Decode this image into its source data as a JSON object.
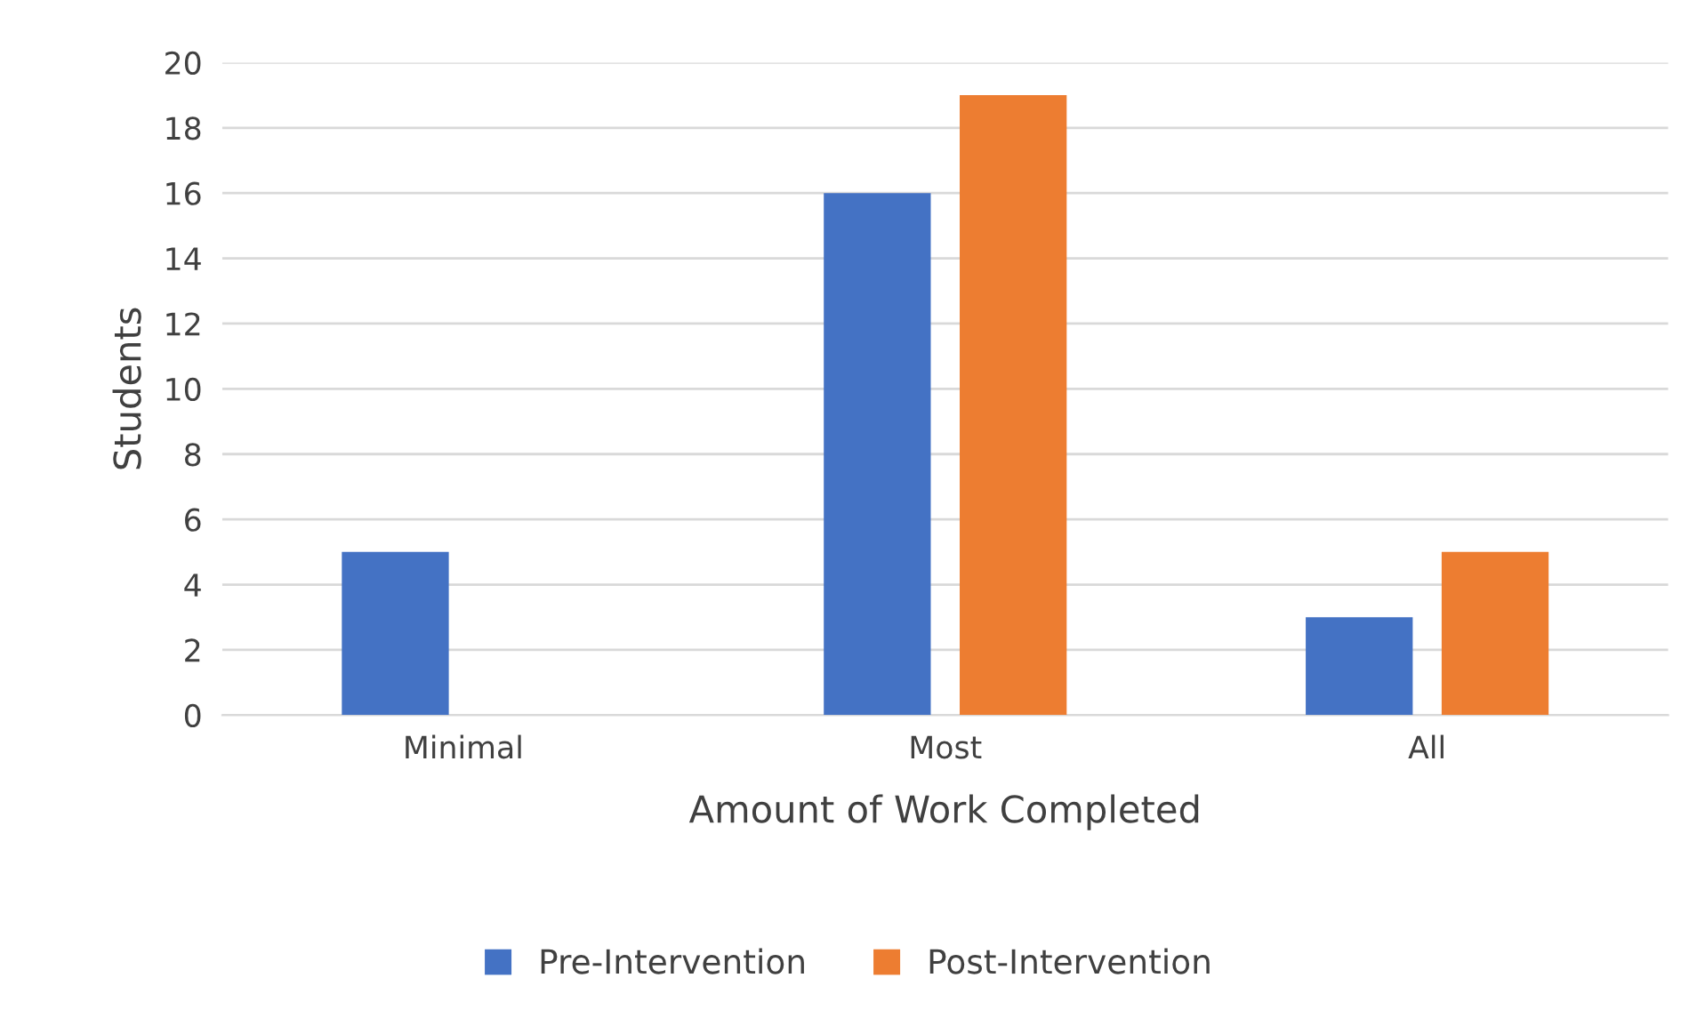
{
  "chart_data": {
    "type": "bar",
    "xlabel": "Amount of Work Completed",
    "ylabel": "Students",
    "categories": [
      "Minimal",
      "Most",
      "All"
    ],
    "series": [
      {
        "name": "Pre-Intervention",
        "color": "#4472c4",
        "values": [
          5,
          16,
          3
        ]
      },
      {
        "name": "Post-Intervention",
        "color": "#ed7d31",
        "values": [
          0,
          19,
          5
        ]
      }
    ],
    "ylim": [
      0,
      20
    ],
    "yticks": [
      0,
      2,
      4,
      6,
      8,
      10,
      12,
      14,
      16,
      18,
      20
    ],
    "grid": "y",
    "legend": "bottom"
  }
}
